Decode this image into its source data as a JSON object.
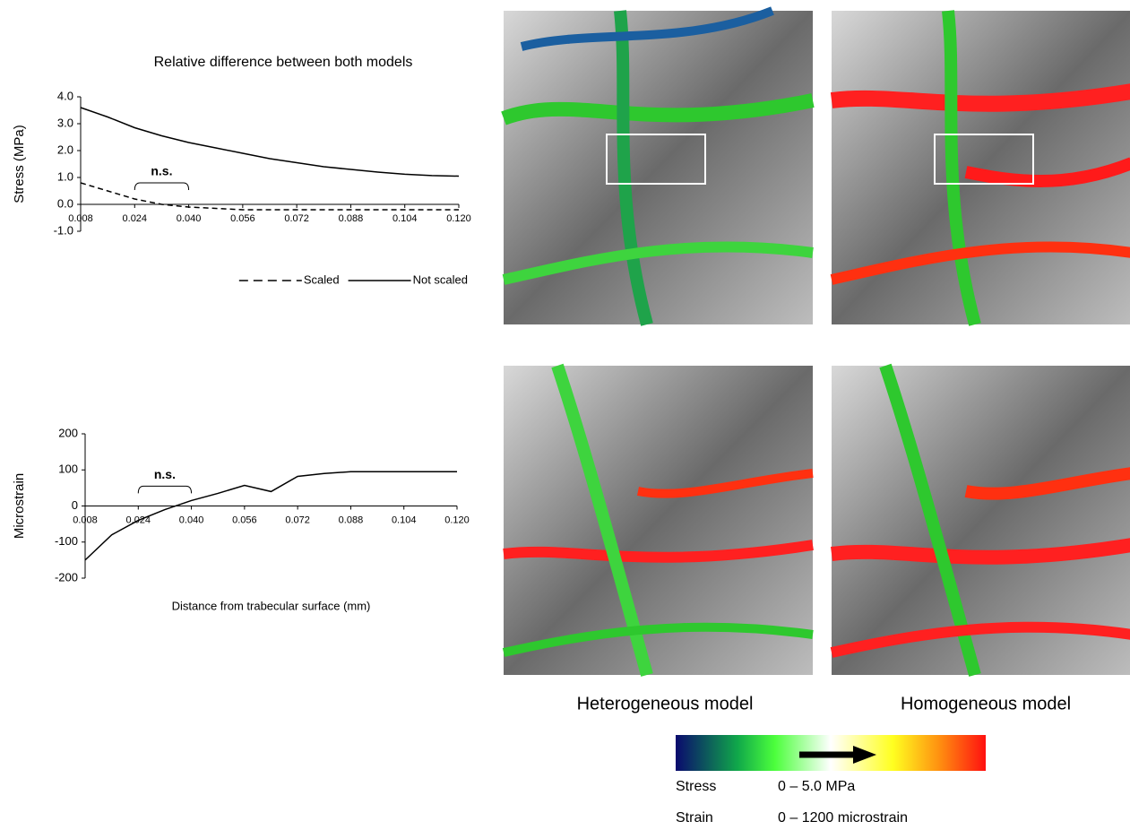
{
  "chart_data": [
    {
      "type": "line",
      "title": "Relative difference between both models",
      "y_label": "Stress (MPa)",
      "x": [
        0.008,
        0.016,
        0.024,
        0.032,
        0.04,
        0.048,
        0.056,
        0.064,
        0.072,
        0.08,
        0.088,
        0.096,
        0.104,
        0.112,
        0.12
      ],
      "series": [
        {
          "name": "Scaled",
          "color": "#000000",
          "dashed": true,
          "values": [
            0.8,
            0.5,
            0.2,
            0.0,
            -0.1,
            -0.15,
            -0.2,
            -0.2,
            -0.2,
            -0.2,
            -0.2,
            -0.2,
            -0.2,
            -0.2,
            -0.2
          ]
        },
        {
          "name": "Not scaled",
          "color": "#000000",
          "dashed": false,
          "values": [
            3.6,
            3.25,
            2.85,
            2.55,
            2.3,
            2.1,
            1.9,
            1.7,
            1.55,
            1.4,
            1.3,
            1.2,
            1.12,
            1.07,
            1.05
          ]
        }
      ],
      "xlim": [
        0.008,
        0.12
      ],
      "xticks": [
        0.008,
        0.024,
        {
          "value": 0.04,
          "label": "0.040"
        },
        0.056,
        0.072,
        0.088,
        0.104,
        {
          "value": 0.12,
          "label": "0.120"
        }
      ],
      "ylim": [
        -1,
        4
      ],
      "yticks": [
        {
          "value": 4,
          "label": "4.0"
        },
        {
          "value": 3,
          "label": "3.0"
        },
        {
          "value": 2,
          "label": "2.0"
        },
        {
          "value": 1,
          "label": "1.0"
        },
        {
          "value": 0,
          "label": "0.0"
        },
        {
          "value": -1,
          "label": "-1.0"
        }
      ],
      "annotations": [
        {
          "text": "n.s.",
          "x": [
            0.024,
            0.04
          ],
          "y": 0.8
        }
      ],
      "legend": "bottom-right"
    },
    {
      "type": "line",
      "y_label": "Microstrain",
      "x_label": "Distance from trabecular surface (mm)",
      "x": [
        0.008,
        0.016,
        0.024,
        0.032,
        0.04,
        0.048,
        0.056,
        0.064,
        0.072,
        0.08,
        0.088,
        0.096,
        0.104,
        0.112,
        0.12
      ],
      "values": [
        -150,
        -80,
        -40,
        -10,
        15,
        35,
        57,
        40,
        82,
        90,
        95,
        95,
        95,
        95,
        95
      ],
      "color": "#000000",
      "xlim": [
        0.008,
        0.12
      ],
      "xticks": [
        0.008,
        0.024,
        {
          "value": 0.04,
          "label": "0.040"
        },
        0.056,
        0.072,
        0.088,
        0.104,
        {
          "value": 0.12,
          "label": "0.120"
        }
      ],
      "ylim": [
        -200,
        200
      ],
      "yticks": [
        200,
        100,
        0,
        -100,
        -200
      ],
      "annotations": [
        {
          "text": "n.s.",
          "x": [
            0.024,
            0.04
          ],
          "y": 55
        }
      ]
    }
  ],
  "figure": {
    "captions": [
      "Heterogeneous model",
      "Homogeneous model"
    ],
    "colorbar": {
      "rows": [
        [
          "Stress",
          "0 – 5.0 MPa"
        ],
        [
          "Strain",
          "0 – 1200 microstrain"
        ]
      ]
    }
  }
}
